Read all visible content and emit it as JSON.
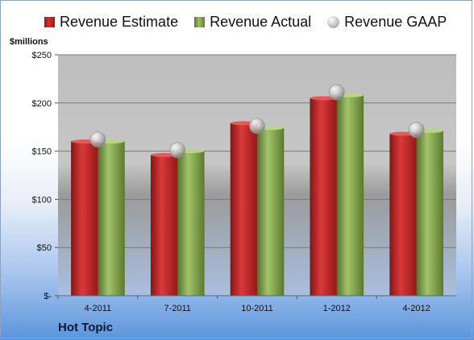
{
  "chart_data": {
    "type": "bar",
    "categories": [
      "4-2011",
      "7-2011",
      "10-2011",
      "1-2012",
      "4-2012"
    ],
    "series": [
      {
        "name": "Revenue Estimate",
        "values": [
          160,
          146,
          179,
          205,
          168
        ],
        "color": "#c42424"
      },
      {
        "name": "Revenue Actual",
        "values": [
          160,
          150,
          174,
          208,
          171
        ],
        "color": "#8aab4f"
      },
      {
        "name": "Revenue GAAP",
        "values": [
          162,
          151,
          176,
          211,
          172
        ],
        "color": "#b5b5b5",
        "marker": "sphere"
      }
    ],
    "ylabel": "$millions",
    "ylim": [
      0,
      250
    ],
    "yticks": [
      0,
      50,
      100,
      150,
      200,
      250
    ],
    "ytick_labels": [
      "$-",
      "$50",
      "$100",
      "$150",
      "$200",
      "$250"
    ],
    "grid": true,
    "legend_position": "top"
  },
  "company": "Hot Topic"
}
